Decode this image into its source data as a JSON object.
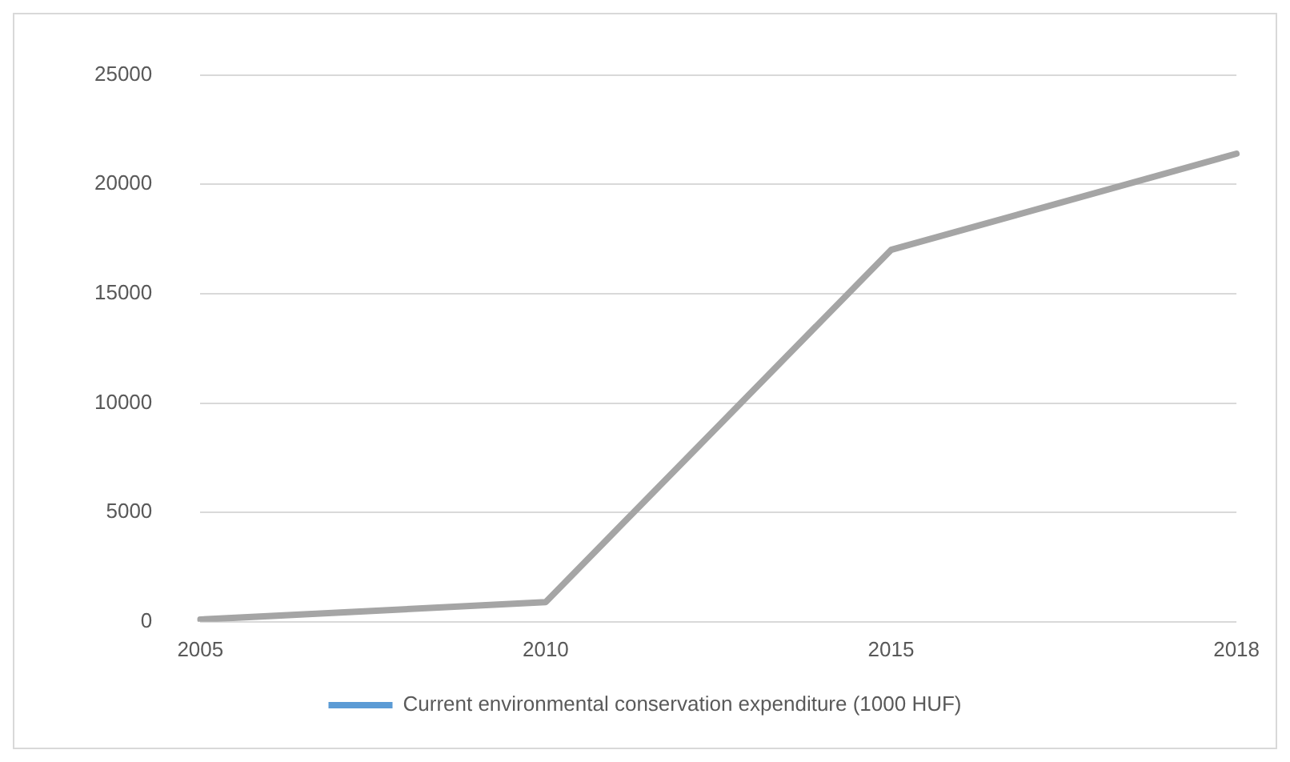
{
  "chart_data": {
    "type": "line",
    "categories": [
      "2005",
      "2010",
      "2015",
      "2018"
    ],
    "series": [
      {
        "name": "Current environmental conservation expenditure (1000 HUF)",
        "color": "#a5a5a5",
        "values": [
          100,
          900,
          17000,
          21400
        ]
      }
    ],
    "ylim": [
      0,
      25000
    ],
    "yticks": [
      0,
      5000,
      10000,
      15000,
      20000,
      25000
    ],
    "grid": "y",
    "legend": "bottom",
    "marker": "none"
  }
}
